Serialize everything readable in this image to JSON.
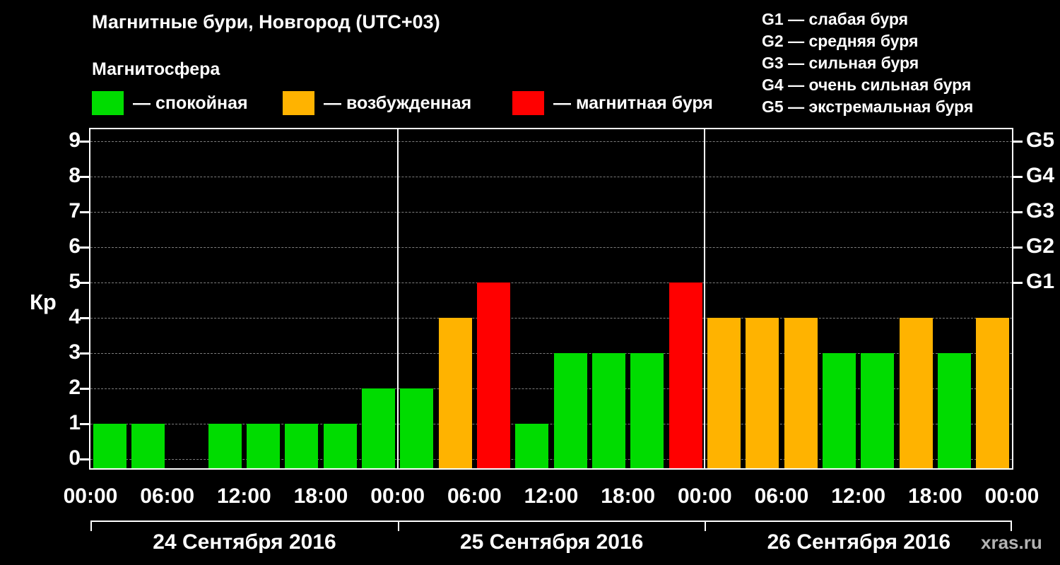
{
  "header": {
    "title": "Магнитные бури, Новгород (UTC+03)",
    "subtitle": "Магнитосфера"
  },
  "legend": [
    {
      "label": "— спокойная",
      "color": "#00dc00"
    },
    {
      "label": "— возбужденная",
      "color": "#ffb300"
    },
    {
      "label": "— магнитная буря",
      "color": "#ff0000"
    }
  ],
  "storm_scale": [
    "G1 — слабая буря",
    "G2 — средняя буря",
    "G3 — сильная буря",
    "G4 — очень сильная буря",
    "G5 — экстремальная буря"
  ],
  "watermark": "xras.ru",
  "chart_data": {
    "type": "bar",
    "title": "Магнитные бури, Новгород (UTC+03)",
    "ylabel": "Кр",
    "ylim": [
      0,
      9
    ],
    "yticks": [
      0,
      1,
      2,
      3,
      4,
      5,
      6,
      7,
      8,
      9
    ],
    "right_axis": [
      {
        "value": 5,
        "label": "G1"
      },
      {
        "value": 6,
        "label": "G2"
      },
      {
        "value": 7,
        "label": "G3"
      },
      {
        "value": 8,
        "label": "G4"
      },
      {
        "value": 9,
        "label": "G5"
      }
    ],
    "x_tick_labels": [
      "00:00",
      "06:00",
      "12:00",
      "18:00",
      "00:00",
      "06:00",
      "12:00",
      "18:00",
      "00:00",
      "06:00",
      "12:00",
      "18:00",
      "00:00"
    ],
    "bar_interval_hours": 3,
    "grid": true,
    "color_rules": {
      "quiet_max": 3,
      "excited_max": 4
    },
    "colors": {
      "quiet": "#00dc00",
      "excited": "#ffb300",
      "storm": "#ff0000"
    },
    "days": [
      {
        "date": "24 Сентября 2016",
        "values": [
          1,
          1,
          0,
          1,
          1,
          1,
          1,
          2
        ]
      },
      {
        "date": "25 Сентября 2016",
        "values": [
          2,
          4,
          5,
          1,
          3,
          3,
          3,
          5
        ]
      },
      {
        "date": "26 Сентября 2016",
        "values": [
          4,
          4,
          4,
          3,
          3,
          4,
          3,
          4
        ]
      }
    ]
  }
}
